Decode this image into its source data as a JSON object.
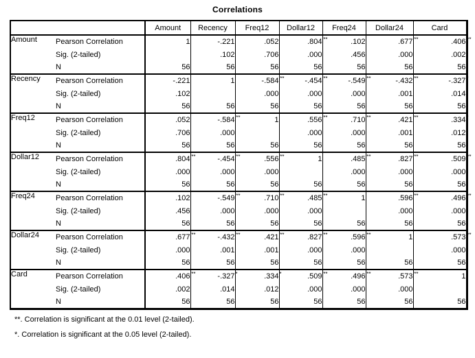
{
  "title": "Correlations",
  "table": {
    "columns": [
      "Amount",
      "Recency",
      "Freq12",
      "Dollar12",
      "Freq24",
      "Dollar24",
      "Card"
    ],
    "stat_labels": [
      "Pearson Correlation",
      "Sig. (2-tailed)",
      "N"
    ],
    "rows": [
      {
        "variable": "Amount",
        "pearson": [
          "1",
          "-.221",
          ".052",
          ".804**",
          ".102",
          ".677**",
          ".406**"
        ],
        "sig": [
          "",
          ".102",
          ".706",
          ".000",
          ".456",
          ".000",
          ".002"
        ],
        "n": [
          "56",
          "56",
          "56",
          "56",
          "56",
          "56",
          "56"
        ]
      },
      {
        "variable": "Recency",
        "pearson": [
          "-.221",
          "1",
          "-.584**",
          "-.454**",
          "-.549**",
          "-.432**",
          "-.327*"
        ],
        "sig": [
          ".102",
          "",
          ".000",
          ".000",
          ".000",
          ".001",
          ".014"
        ],
        "n": [
          "56",
          "56",
          "56",
          "56",
          "56",
          "56",
          "56"
        ]
      },
      {
        "variable": "Freq12",
        "pearson": [
          ".052",
          "-.584**",
          "1",
          ".556**",
          ".710**",
          ".421**",
          ".334*"
        ],
        "sig": [
          ".706",
          ".000",
          "",
          ".000",
          ".000",
          ".001",
          ".012"
        ],
        "n": [
          "56",
          "56",
          "56",
          "56",
          "56",
          "56",
          "56"
        ]
      },
      {
        "variable": "Dollar12",
        "pearson": [
          ".804**",
          "-.454**",
          ".556**",
          "1",
          ".485**",
          ".827**",
          ".509**"
        ],
        "sig": [
          ".000",
          ".000",
          ".000",
          "",
          ".000",
          ".000",
          ".000"
        ],
        "n": [
          "56",
          "56",
          "56",
          "56",
          "56",
          "56",
          "56"
        ]
      },
      {
        "variable": "Freq24",
        "pearson": [
          ".102",
          "-.549**",
          ".710**",
          ".485**",
          "1",
          ".596**",
          ".496**"
        ],
        "sig": [
          ".456",
          ".000",
          ".000",
          ".000",
          "",
          ".000",
          ".000"
        ],
        "n": [
          "56",
          "56",
          "56",
          "56",
          "56",
          "56",
          "56"
        ]
      },
      {
        "variable": "Dollar24",
        "pearson": [
          ".677**",
          "-.432**",
          ".421**",
          ".827**",
          ".596**",
          "1",
          ".573**"
        ],
        "sig": [
          ".000",
          ".001",
          ".001",
          ".000",
          ".000",
          "",
          ".000"
        ],
        "n": [
          "56",
          "56",
          "56",
          "56",
          "56",
          "56",
          "56"
        ]
      },
      {
        "variable": "Card",
        "pearson": [
          ".406**",
          "-.327*",
          ".334*",
          ".509**",
          ".496**",
          ".573**",
          "1"
        ],
        "sig": [
          ".002",
          ".014",
          ".012",
          ".000",
          ".000",
          ".000",
          ""
        ],
        "n": [
          "56",
          "56",
          "56",
          "56",
          "56",
          "56",
          "56"
        ]
      }
    ]
  },
  "footnotes": [
    "**. Correlation is significant at the 0.01 level (2-tailed).",
    "*. Correlation is significant at the 0.05 level (2-tailed)."
  ],
  "colors": {
    "text": "#000000",
    "background": "#ffffff",
    "border": "#000000"
  }
}
